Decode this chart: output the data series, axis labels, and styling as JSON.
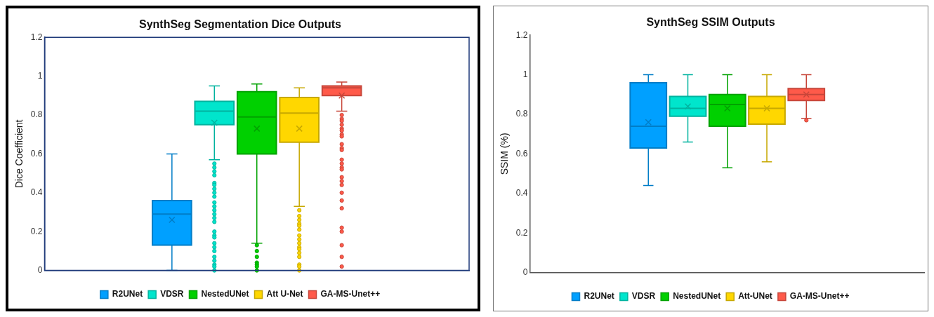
{
  "chart_data": [
    {
      "type": "box",
      "title": "SynthSeg Segmentation Dice Outputs",
      "ylabel": "Dice Coefficient",
      "categories": [
        null
      ],
      "ylim": [
        0,
        1.2
      ],
      "yticks": [
        0,
        0.2,
        0.4,
        0.6,
        0.8,
        1,
        1.2
      ],
      "legend": "bottom",
      "series": [
        {
          "name": "R2UNet",
          "color": "#00a0ff",
          "boxes": [
            {
              "low": 0,
              "q1": 0.13,
              "median": 0.29,
              "q3": 0.36,
              "high": 0.6,
              "mean": 0.26
            }
          ]
        },
        {
          "name": "VDSR",
          "color": "#00e5cc",
          "boxes": [
            {
              "low": 0.57,
              "q1": 0.75,
              "median": 0.82,
              "q3": 0.87,
              "high": 0.95,
              "mean": 0.76,
              "outliers": [
                0.55,
                0.53,
                0.51,
                0.49,
                0.45,
                0.44,
                0.42,
                0.4,
                0.38,
                0.35,
                0.33,
                0.31,
                0.29,
                0.27,
                0.25,
                0.2,
                0.18,
                0.17,
                0.14,
                0.12,
                0.1,
                0.07,
                0.05,
                0.03,
                0.02,
                0
              ]
            }
          ]
        },
        {
          "name": "NestedUNet",
          "color": "#00d000",
          "boxes": [
            {
              "low": 0.14,
              "q1": 0.6,
              "median": 0.79,
              "q3": 0.92,
              "high": 0.96,
              "mean": 0.73,
              "outliers": [
                0.13,
                0.1,
                0.07,
                0.04,
                0.03,
                0.02,
                0
              ]
            }
          ]
        },
        {
          "name": "Att U-Net",
          "color": "#ffd700",
          "boxes": [
            {
              "low": 0.33,
              "q1": 0.66,
              "median": 0.81,
              "q3": 0.89,
              "high": 0.94,
              "mean": 0.73,
              "outliers": [
                0.31,
                0.28,
                0.26,
                0.24,
                0.23,
                0.21,
                0.18,
                0.16,
                0.14,
                0.12,
                0.11,
                0.09,
                0.07,
                0.03,
                0.02,
                0
              ]
            }
          ]
        },
        {
          "name": "GA-MS-Unet++",
          "color": "#ff5a4a",
          "boxes": [
            {
              "low": 0.82,
              "q1": 0.9,
              "median": 0.94,
              "q3": 0.95,
              "high": 0.97,
              "mean": 0.9,
              "outliers": [
                0.8,
                0.78,
                0.77,
                0.75,
                0.73,
                0.72,
                0.7,
                0.69,
                0.65,
                0.63,
                0.62,
                0.57,
                0.55,
                0.53,
                0.52,
                0.48,
                0.46,
                0.44,
                0.4,
                0.36,
                0.32,
                0.22,
                0.2,
                0.13,
                0.07,
                0.02
              ]
            }
          ]
        }
      ]
    },
    {
      "type": "box",
      "title": "SynthSeg SSIM Outputs",
      "ylabel": "SSIM (%)",
      "categories": [
        null
      ],
      "ylim": [
        0,
        1.2
      ],
      "yticks": [
        0,
        0.2,
        0.4,
        0.6,
        0.8,
        1,
        1.2
      ],
      "legend": "bottom",
      "series": [
        {
          "name": "R2UNet",
          "color": "#00a0ff",
          "boxes": [
            {
              "low": 0.44,
              "q1": 0.63,
              "median": 0.74,
              "q3": 0.96,
              "high": 1,
              "mean": 0.76
            }
          ]
        },
        {
          "name": "VDSR",
          "color": "#00e5cc",
          "boxes": [
            {
              "low": 0.66,
              "q1": 0.79,
              "median": 0.83,
              "q3": 0.89,
              "high": 1,
              "mean": 0.84
            }
          ]
        },
        {
          "name": "NestedUNet",
          "color": "#00d000",
          "boxes": [
            {
              "low": 0.53,
              "q1": 0.74,
              "median": 0.85,
              "q3": 0.9,
              "high": 1,
              "mean": 0.83
            }
          ]
        },
        {
          "name": "Att-UNet",
          "color": "#ffd700",
          "boxes": [
            {
              "low": 0.56,
              "q1": 0.75,
              "median": 0.83,
              "q3": 0.89,
              "high": 1,
              "mean": 0.83
            }
          ]
        },
        {
          "name": "GA-MS-Unet++",
          "color": "#ff5a4a",
          "boxes": [
            {
              "low": 0.78,
              "q1": 0.87,
              "median": 0.9,
              "q3": 0.93,
              "high": 1,
              "mean": 0.9,
              "outliers": [
                0.77
              ]
            }
          ]
        }
      ]
    }
  ]
}
